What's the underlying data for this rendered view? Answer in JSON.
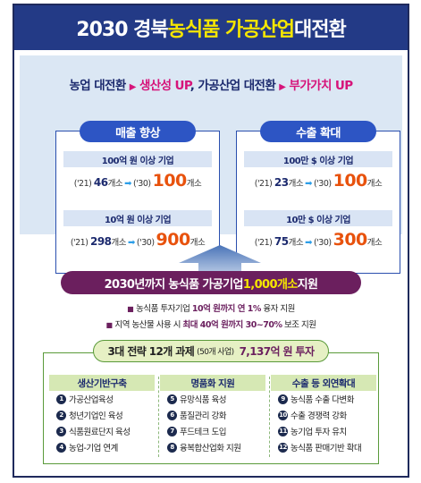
{
  "title": {
    "part1": "2030 경북 ",
    "part2": "농식품 가공산업",
    "part3": " 대전환"
  },
  "subtitle": {
    "a": "농업 대전환",
    "b": "생산성 UP",
    "c": ", 가공산업 대전환",
    "d": "부가가치 UP",
    "arrow": "▶"
  },
  "sales": {
    "header": "매출 향상",
    "rows": [
      {
        "label": "100억 원 이상 기업",
        "from_year": "('21)",
        "from": "46",
        "unit": "개소",
        "to_year": "('30)",
        "to": "100",
        "to_unit": "개소"
      },
      {
        "label": "10억 원 이상 기업",
        "from_year": "('21)",
        "from": "298",
        "unit": "개소",
        "to_year": "('30)",
        "to": "900",
        "to_unit": "개소"
      }
    ]
  },
  "export": {
    "header": "수출 확대",
    "rows": [
      {
        "label": "100만 $ 이상 기업",
        "from_year": "('21)",
        "from": "23",
        "unit": "개소",
        "to_year": "('30)",
        "to": "100",
        "to_unit": "개소"
      },
      {
        "label": "10만 $  이상 기업",
        "from_year": "('21)",
        "from": "75",
        "unit": "개소",
        "to_year": "('30)",
        "to": "300",
        "to_unit": "개소"
      }
    ]
  },
  "support_bar": {
    "a": "2030년까지 농식품 가공기업 ",
    "b": "1,000개소",
    "c": " 지원"
  },
  "bullets": [
    {
      "a": "농식품 투자기업 ",
      "b": "10억 원까지 연 1%",
      "c": " 융자 지원"
    },
    {
      "a": "지역 농산물 사용 시 ",
      "b": "최대 40억 원까지 30~70%",
      "c": " 보조 지원"
    }
  ],
  "strategy_bar": {
    "a": "3대 전략 12개 과제",
    "b": "(50개 사업)",
    "c": "7,137억 원 투자"
  },
  "strategies": [
    {
      "header": "생산기반구축",
      "items": [
        {
          "n": "1",
          "label": "가공산업육성"
        },
        {
          "n": "2",
          "label": "청년기업인 육성"
        },
        {
          "n": "3",
          "label": "식품원료단지 육성"
        },
        {
          "n": "4",
          "label": "농업-기업 연계"
        }
      ]
    },
    {
      "header": "명품화 지원",
      "items": [
        {
          "n": "5",
          "label": "유망식품 육성"
        },
        {
          "n": "6",
          "label": "품질관리 강화"
        },
        {
          "n": "7",
          "label": "푸드테크 도입"
        },
        {
          "n": "8",
          "label": "융복합산업화 지원"
        }
      ]
    },
    {
      "header": "수출 등 외연확대",
      "items": [
        {
          "n": "9",
          "label": "농식품 수출 다변화"
        },
        {
          "n": "10",
          "label": "수출 경쟁력 강화"
        },
        {
          "n": "11",
          "label": "농기업 투자 유치"
        },
        {
          "n": "12",
          "label": "농식품 판매기반 확대"
        }
      ]
    }
  ],
  "colors": {
    "navy": "#233a86",
    "yellow": "#f5e600",
    "pink": "#d6147a",
    "orange": "#e8520d",
    "purple": "#6b1f5e",
    "green": "#5a9a3a"
  }
}
